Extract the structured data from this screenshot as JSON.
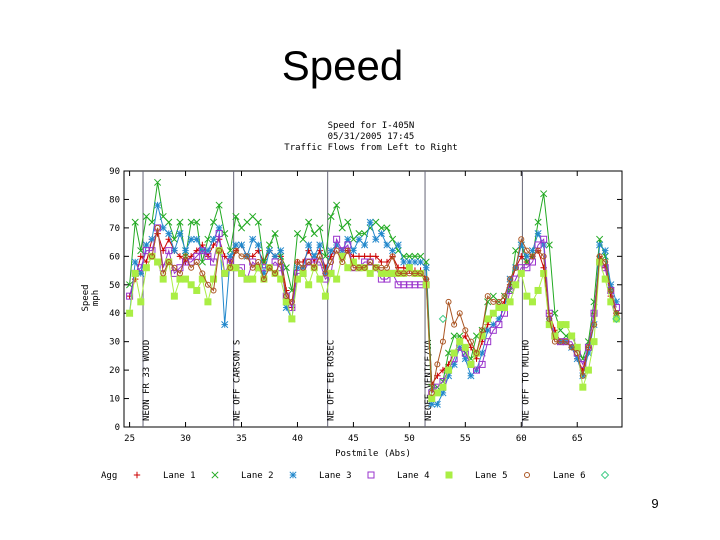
{
  "slide": {
    "title": "Speed",
    "page_number": "9"
  },
  "chart_data": {
    "type": "line",
    "title": [
      "Speed for I-405N",
      "05/31/2005 17:45",
      "Traffic Flows from Left to Right"
    ],
    "xlabel": "Postmile (Abs)",
    "ylabel": [
      "Speed",
      "mph"
    ],
    "xlim": [
      24.5,
      69
    ],
    "ylim": [
      0,
      90
    ],
    "xticks": [
      25,
      30,
      35,
      40,
      45,
      50,
      55,
      60,
      65
    ],
    "yticks": [
      0,
      10,
      20,
      30,
      40,
      50,
      60,
      70,
      80,
      90
    ],
    "grid": false,
    "legend_position": "bottom",
    "legend_prefix": "Agg",
    "markers": [
      {
        "x": 26.2,
        "label": "NEON FR 33 WOOD"
      },
      {
        "x": 34.3,
        "label": "NE OFF CARSON S"
      },
      {
        "x": 42.7,
        "label": "NE OFF EB ROSEC"
      },
      {
        "x": 51.4,
        "label": "NEOFF VENICE/VA"
      },
      {
        "x": 60.1,
        "label": "NE OFF TO MULHO"
      }
    ],
    "x": [
      25.0,
      25.5,
      26.0,
      26.5,
      27.0,
      27.5,
      28.0,
      28.5,
      29.0,
      29.5,
      30.0,
      30.5,
      31.0,
      31.5,
      32.0,
      32.5,
      33.0,
      33.5,
      34.0,
      34.5,
      35.0,
      35.5,
      36.0,
      36.5,
      37.0,
      37.5,
      38.0,
      38.5,
      39.0,
      39.5,
      40.0,
      40.5,
      41.0,
      41.5,
      42.0,
      42.5,
      43.0,
      43.5,
      44.0,
      44.5,
      45.0,
      45.5,
      46.0,
      46.5,
      47.0,
      47.5,
      48.0,
      48.5,
      49.0,
      49.5,
      50.0,
      50.5,
      51.0,
      51.5,
      52.0,
      52.5,
      53.0,
      53.5,
      54.0,
      54.5,
      55.0,
      55.5,
      56.0,
      56.5,
      57.0,
      57.5,
      58.0,
      58.5,
      59.0,
      59.5,
      60.0,
      60.5,
      61.0,
      61.5,
      62.0,
      62.5,
      63.0,
      63.5,
      64.0,
      64.5,
      65.0,
      65.5,
      66.0,
      66.5,
      67.0,
      67.5,
      68.0,
      68.5
    ],
    "series": [
      {
        "name": "Agg",
        "marker": "plus",
        "color": "#cc0000",
        "values": [
          46,
          52,
          60,
          58,
          66,
          68,
          62,
          66,
          62,
          60,
          58,
          60,
          62,
          64,
          60,
          64,
          66,
          60,
          58,
          62,
          64,
          60,
          60,
          62,
          58,
          62,
          60,
          60,
          48,
          42,
          58,
          58,
          62,
          58,
          62,
          56,
          60,
          64,
          62,
          62,
          60,
          60,
          60,
          60,
          60,
          58,
          58,
          60,
          56,
          56,
          55,
          55,
          55,
          52,
          15,
          18,
          20,
          22,
          26,
          30,
          32,
          28,
          24,
          30,
          36,
          40,
          42,
          44,
          50,
          56,
          60,
          58,
          60,
          62,
          56,
          40,
          34,
          30,
          30,
          28,
          24,
          20,
          28,
          40,
          60,
          56,
          46,
          40
        ]
      },
      {
        "name": "Lane 1",
        "marker": "x",
        "color": "#22aa22",
        "values": [
          50,
          72,
          62,
          74,
          72,
          86,
          74,
          72,
          66,
          72,
          60,
          72,
          72,
          58,
          66,
          72,
          78,
          68,
          62,
          74,
          70,
          72,
          74,
          72,
          58,
          64,
          68,
          60,
          56,
          48,
          68,
          66,
          72,
          68,
          70,
          60,
          74,
          78,
          70,
          72,
          66,
          68,
          68,
          70,
          72,
          70,
          70,
          66,
          62,
          60,
          60,
          60,
          60,
          58,
          14,
          14,
          16,
          26,
          32,
          32,
          26,
          24,
          32,
          34,
          44,
          46,
          44,
          46,
          48,
          62,
          64,
          58,
          60,
          72,
          82,
          64,
          40,
          34,
          32,
          32,
          28,
          24,
          30,
          44,
          66,
          60,
          48,
          40
        ]
      },
      {
        "name": "Lane 2",
        "marker": "star",
        "color": "#2288cc",
        "values": [
          40,
          58,
          54,
          64,
          66,
          78,
          70,
          68,
          62,
          68,
          62,
          66,
          66,
          62,
          62,
          66,
          70,
          36,
          60,
          64,
          64,
          60,
          66,
          64,
          54,
          62,
          60,
          62,
          42,
          38,
          56,
          56,
          64,
          60,
          64,
          54,
          62,
          64,
          62,
          66,
          62,
          66,
          64,
          72,
          66,
          68,
          64,
          62,
          64,
          58,
          58,
          58,
          58,
          56,
          8,
          8,
          12,
          18,
          22,
          28,
          24,
          18,
          20,
          26,
          34,
          36,
          38,
          42,
          52,
          56,
          64,
          60,
          62,
          68,
          64,
          38,
          32,
          30,
          30,
          28,
          24,
          18,
          26,
          36,
          64,
          62,
          50,
          44
        ]
      },
      {
        "name": "Lane 3",
        "marker": "square",
        "color": "#9933cc",
        "values": [
          46,
          54,
          56,
          62,
          62,
          70,
          56,
          62,
          54,
          56,
          58,
          58,
          60,
          62,
          60,
          58,
          68,
          54,
          58,
          56,
          56,
          52,
          58,
          56,
          56,
          56,
          58,
          56,
          46,
          42,
          54,
          54,
          58,
          58,
          58,
          52,
          54,
          66,
          62,
          64,
          56,
          56,
          58,
          58,
          56,
          52,
          52,
          54,
          50,
          50,
          50,
          50,
          50,
          50,
          12,
          14,
          16,
          20,
          24,
          28,
          26,
          22,
          20,
          22,
          30,
          34,
          36,
          40,
          48,
          52,
          56,
          56,
          58,
          64,
          66,
          40,
          32,
          30,
          30,
          30,
          26,
          22,
          28,
          40,
          58,
          56,
          48,
          42
        ]
      },
      {
        "name": "Lane 4",
        "marker": "fillsquare",
        "color": "#aaee44",
        "values": [
          40,
          54,
          44,
          56,
          60,
          58,
          52,
          58,
          46,
          52,
          52,
          50,
          48,
          52,
          44,
          52,
          62,
          54,
          56,
          56,
          54,
          52,
          52,
          56,
          52,
          56,
          54,
          52,
          44,
          38,
          52,
          54,
          50,
          56,
          52,
          46,
          54,
          52,
          60,
          56,
          58,
          56,
          56,
          54,
          56,
          54,
          54,
          54,
          54,
          54,
          56,
          54,
          54,
          50,
          10,
          12,
          14,
          20,
          26,
          30,
          28,
          22,
          26,
          32,
          38,
          40,
          42,
          42,
          44,
          50,
          54,
          46,
          44,
          48,
          54,
          36,
          32,
          36,
          36,
          32,
          28,
          14,
          20,
          30,
          58,
          52,
          44,
          38
        ]
      },
      {
        "name": "Lane 5",
        "marker": "circle",
        "color": "#aa5522",
        "values": [
          null,
          null,
          null,
          null,
          60,
          70,
          54,
          58,
          56,
          54,
          60,
          56,
          58,
          54,
          50,
          48,
          62,
          null,
          56,
          62,
          60,
          60,
          56,
          58,
          52,
          56,
          54,
          58,
          46,
          44,
          58,
          56,
          58,
          56,
          60,
          54,
          58,
          62,
          58,
          62,
          56,
          56,
          56,
          58,
          56,
          56,
          56,
          60,
          54,
          54,
          54,
          54,
          54,
          52,
          12,
          22,
          30,
          44,
          36,
          40,
          34,
          30,
          26,
          34,
          46,
          44,
          44,
          46,
          52,
          56,
          66,
          62,
          60,
          62,
          60,
          38,
          30,
          30,
          30,
          28,
          26,
          18,
          28,
          36,
          60,
          58,
          48,
          40
        ]
      },
      {
        "name": "Lane 6",
        "marker": "diamond",
        "color": "#44cc88",
        "values": [
          null,
          null,
          null,
          null,
          null,
          null,
          null,
          null,
          null,
          null,
          null,
          null,
          null,
          null,
          null,
          null,
          null,
          null,
          null,
          null,
          null,
          null,
          null,
          null,
          null,
          null,
          null,
          null,
          null,
          null,
          null,
          null,
          null,
          null,
          null,
          null,
          null,
          null,
          null,
          null,
          null,
          null,
          null,
          null,
          null,
          null,
          null,
          null,
          null,
          null,
          null,
          null,
          null,
          null,
          null,
          null,
          38,
          null,
          null,
          null,
          null,
          null,
          null,
          null,
          null,
          null,
          null,
          null,
          null,
          null,
          null,
          null,
          null,
          null,
          null,
          null,
          null,
          null,
          null,
          null,
          null,
          null,
          null,
          null,
          null,
          null,
          null,
          38
        ]
      }
    ]
  }
}
